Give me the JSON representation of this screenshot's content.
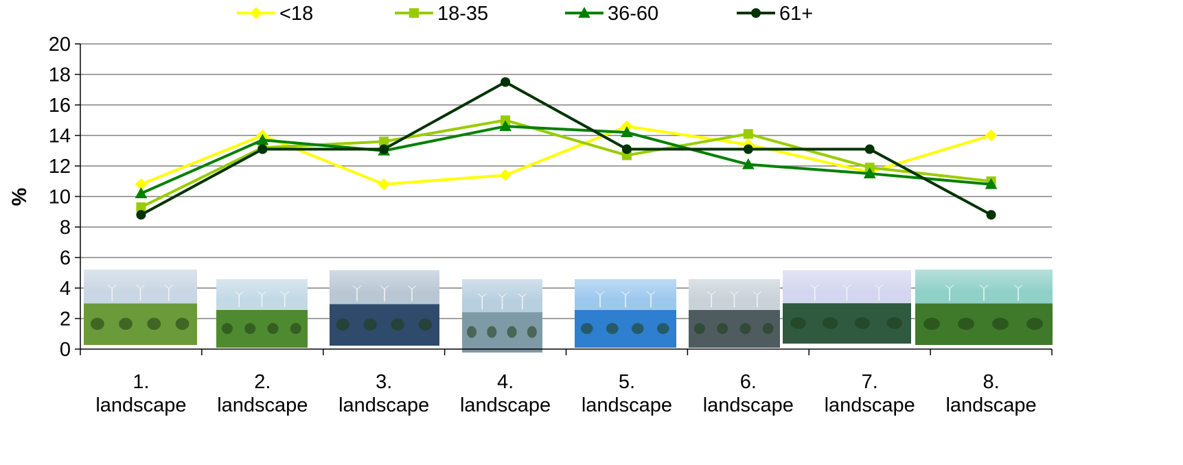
{
  "chart_data": {
    "type": "line",
    "title": "",
    "xlabel": "",
    "ylabel": "%",
    "ylim": [
      0,
      20
    ],
    "yticks": [
      0,
      2,
      4,
      6,
      8,
      10,
      12,
      14,
      16,
      18,
      20
    ],
    "grid": true,
    "legend_position": "top",
    "categories": [
      [
        "1.",
        "landscape"
      ],
      [
        "2.",
        "landscape"
      ],
      [
        "3.",
        "landscape"
      ],
      [
        "4.",
        "landscape"
      ],
      [
        "5.",
        "landscape"
      ],
      [
        "6.",
        "landscape"
      ],
      [
        "7.",
        "landscape"
      ],
      [
        "8.",
        "landscape"
      ]
    ],
    "series": [
      {
        "name": "<18",
        "color": "#ffff00",
        "marker": "diamond",
        "values": [
          10.8,
          14.0,
          10.8,
          11.4,
          14.6,
          13.4,
          11.6,
          14.0
        ]
      },
      {
        "name": "18-35",
        "color": "#99cc00",
        "marker": "square",
        "values": [
          9.3,
          13.2,
          13.6,
          15.0,
          12.7,
          14.1,
          11.9,
          11.0
        ]
      },
      {
        "name": "36-60",
        "color": "#008000",
        "marker": "triangle",
        "values": [
          10.2,
          13.7,
          13.0,
          14.6,
          14.2,
          12.1,
          11.5,
          10.8
        ]
      },
      {
        "name": "61+",
        "color": "#003300",
        "marker": "circle",
        "values": [
          8.8,
          13.1,
          13.1,
          17.5,
          13.1,
          13.1,
          13.1,
          8.8
        ]
      }
    ],
    "photos": [
      {
        "icon": "landscape-photo-trees-wind-turbine",
        "sky": "#c9d6e3",
        "ground": "#6a9a3a"
      },
      {
        "icon": "landscape-photo-wind-turbines-field",
        "sky": "#c2d9e6",
        "ground": "#4f8a30"
      },
      {
        "icon": "landscape-photo-rocky-coast-offshore",
        "sky": "#b9c7d4",
        "ground": "#2f4a6a"
      },
      {
        "icon": "landscape-photo-sea-with-pine",
        "sky": "#b8cfe0",
        "ground": "#7e9aa6"
      },
      {
        "icon": "landscape-photo-beach-offshore",
        "sky": "#9cc8ee",
        "ground": "#2f7fd0"
      },
      {
        "icon": "landscape-photo-stormy-sea-offshore",
        "sky": "#c9d2d8",
        "ground": "#4e5c60"
      },
      {
        "icon": "landscape-photo-tent-forest-turbines",
        "sky": "#d4d6f0",
        "ground": "#2f5a40"
      },
      {
        "icon": "landscape-photo-meadow-junipers",
        "sky": "#8fd0c8",
        "ground": "#3f7a2a"
      }
    ]
  }
}
